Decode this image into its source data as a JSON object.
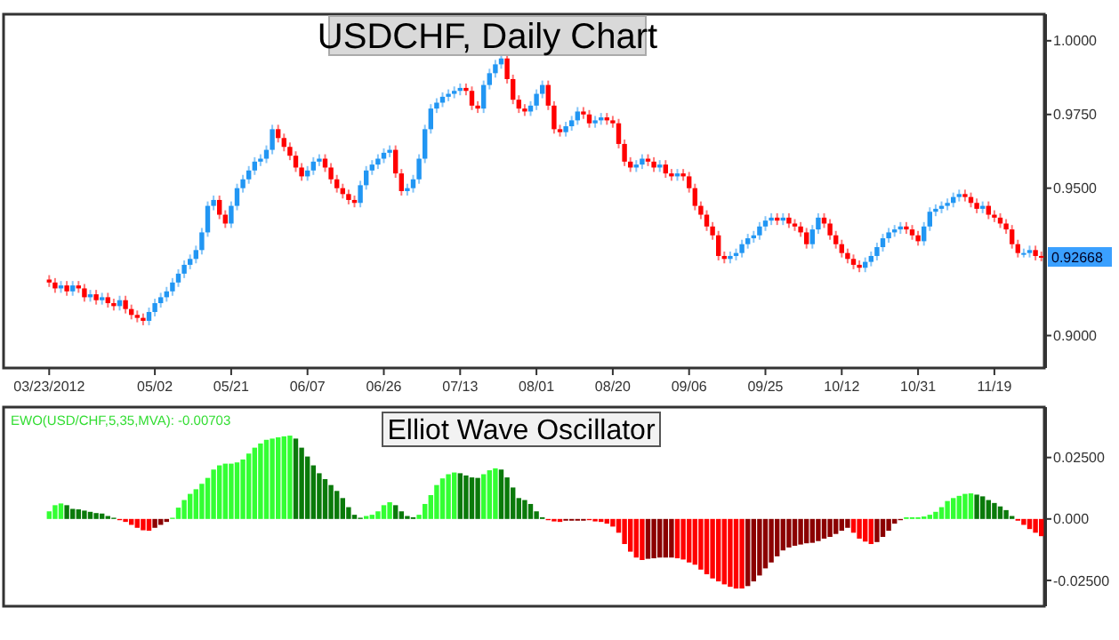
{
  "chart_data": [
    {
      "type": "candlestick",
      "title": "USDCHF, Daily Chart",
      "categories": [
        "03/23/2012",
        null,
        null,
        null,
        null,
        null,
        null,
        null,
        null,
        null,
        null,
        null,
        null,
        null,
        null,
        null,
        null,
        null,
        "05/02",
        null,
        null,
        null,
        null,
        null,
        null,
        null,
        null,
        null,
        null,
        null,
        null,
        "05/21",
        null,
        null,
        null,
        null,
        null,
        null,
        null,
        null,
        null,
        null,
        null,
        null,
        "06/07",
        null,
        null,
        null,
        null,
        null,
        null,
        null,
        null,
        null,
        null,
        null,
        null,
        "06/26",
        null,
        null,
        null,
        null,
        null,
        null,
        null,
        null,
        null,
        null,
        null,
        null,
        "07/13",
        null,
        null,
        null,
        null,
        null,
        null,
        null,
        null,
        null,
        null,
        null,
        null,
        "08/01",
        null,
        null,
        null,
        null,
        null,
        null,
        null,
        null,
        null,
        null,
        null,
        null,
        "08/20",
        null,
        null,
        null,
        null,
        null,
        null,
        null,
        null,
        null,
        null,
        null,
        null,
        "09/06",
        null,
        null,
        null,
        null,
        null,
        null,
        null,
        null,
        null,
        null,
        null,
        null,
        "09/25",
        null,
        null,
        null,
        null,
        null,
        null,
        null,
        null,
        null,
        null,
        null,
        null,
        "10/12",
        null,
        null,
        null,
        null,
        null,
        null,
        null,
        null,
        null,
        null,
        null,
        null,
        "10/31",
        null,
        null,
        null,
        null,
        null,
        null,
        null,
        null,
        null,
        null,
        null,
        null,
        "11/19",
        null,
        null,
        null,
        null,
        null,
        null,
        null,
        null
      ],
      "ohlc": [
        [
          0.919,
          0.9205,
          0.9165,
          0.918
        ],
        [
          0.918,
          0.9195,
          0.9145,
          0.916
        ],
        [
          0.916,
          0.9185,
          0.9145,
          0.917
        ],
        [
          0.917,
          0.9185,
          0.9135,
          0.915
        ],
        [
          0.915,
          0.9185,
          0.9135,
          0.917
        ],
        [
          0.917,
          0.9185,
          0.9145,
          0.916
        ],
        [
          0.916,
          0.9175,
          0.9115,
          0.913
        ],
        [
          0.913,
          0.9155,
          0.9115,
          0.914
        ],
        [
          0.914,
          0.9155,
          0.9105,
          0.912
        ],
        [
          0.912,
          0.9145,
          0.9105,
          0.913
        ],
        [
          0.913,
          0.9145,
          0.9095,
          0.911
        ],
        [
          0.911,
          0.9125,
          0.9085,
          0.91
        ],
        [
          0.91,
          0.9135,
          0.9085,
          0.912
        ],
        [
          0.912,
          0.9135,
          0.9075,
          0.909
        ],
        [
          0.909,
          0.9105,
          0.9055,
          0.907
        ],
        [
          0.907,
          0.9085,
          0.9045,
          0.906
        ],
        [
          0.906,
          0.9075,
          0.9035,
          0.905
        ],
        [
          0.905,
          0.9095,
          0.9035,
          0.908
        ],
        [
          0.908,
          0.9125,
          0.9065,
          0.911
        ],
        [
          0.911,
          0.9145,
          0.9095,
          0.913
        ],
        [
          0.913,
          0.9165,
          0.9115,
          0.915
        ],
        [
          0.915,
          0.9195,
          0.9135,
          0.918
        ],
        [
          0.918,
          0.9225,
          0.9165,
          0.921
        ],
        [
          0.921,
          0.9255,
          0.9195,
          0.924
        ],
        [
          0.924,
          0.9275,
          0.9225,
          0.926
        ],
        [
          0.926,
          0.9305,
          0.9245,
          0.929
        ],
        [
          0.929,
          0.9365,
          0.9275,
          0.935
        ],
        [
          0.935,
          0.9455,
          0.9335,
          0.944
        ],
        [
          0.944,
          0.9475,
          0.9425,
          0.946
        ],
        [
          0.946,
          0.9475,
          0.9395,
          0.941
        ],
        [
          0.941,
          0.9425,
          0.9365,
          0.938
        ],
        [
          0.938,
          0.9455,
          0.9365,
          0.944
        ],
        [
          0.944,
          0.9515,
          0.9425,
          0.95
        ],
        [
          0.95,
          0.9545,
          0.9485,
          0.953
        ],
        [
          0.953,
          0.9575,
          0.9515,
          0.956
        ],
        [
          0.956,
          0.9605,
          0.9545,
          0.959
        ],
        [
          0.959,
          0.9615,
          0.9575,
          0.96
        ],
        [
          0.96,
          0.9645,
          0.9585,
          0.963
        ],
        [
          0.963,
          0.9715,
          0.9615,
          0.97
        ],
        [
          0.97,
          0.9715,
          0.9655,
          0.967
        ],
        [
          0.967,
          0.9685,
          0.9625,
          0.964
        ],
        [
          0.964,
          0.9655,
          0.9595,
          0.961
        ],
        [
          0.961,
          0.9625,
          0.9555,
          0.957
        ],
        [
          0.957,
          0.9585,
          0.9525,
          0.954
        ],
        [
          0.954,
          0.9575,
          0.9525,
          0.956
        ],
        [
          0.956,
          0.9605,
          0.9545,
          0.959
        ],
        [
          0.959,
          0.9615,
          0.9575,
          0.96
        ],
        [
          0.96,
          0.9615,
          0.9555,
          0.957
        ],
        [
          0.957,
          0.9585,
          0.9515,
          0.953
        ],
        [
          0.953,
          0.9545,
          0.9485,
          0.95
        ],
        [
          0.95,
          0.9515,
          0.9465,
          0.948
        ],
        [
          0.948,
          0.9495,
          0.9445,
          0.946
        ],
        [
          0.946,
          0.9475,
          0.9435,
          0.945
        ],
        [
          0.945,
          0.9525,
          0.9435,
          0.951
        ],
        [
          0.951,
          0.9575,
          0.9495,
          0.956
        ],
        [
          0.956,
          0.9595,
          0.9545,
          0.958
        ],
        [
          0.958,
          0.9615,
          0.9565,
          0.96
        ],
        [
          0.96,
          0.9635,
          0.9585,
          0.962
        ],
        [
          0.962,
          0.9645,
          0.9605,
          0.963
        ],
        [
          0.963,
          0.9645,
          0.9535,
          0.955
        ],
        [
          0.955,
          0.9565,
          0.9475,
          0.949
        ],
        [
          0.949,
          0.9515,
          0.9475,
          0.95
        ],
        [
          0.95,
          0.9545,
          0.9485,
          0.953
        ],
        [
          0.953,
          0.9615,
          0.9515,
          0.96
        ],
        [
          0.96,
          0.9715,
          0.9585,
          0.97
        ],
        [
          0.97,
          0.9785,
          0.9685,
          0.977
        ],
        [
          0.977,
          0.9805,
          0.9755,
          0.979
        ],
        [
          0.979,
          0.9825,
          0.9775,
          0.981
        ],
        [
          0.981,
          0.9835,
          0.9795,
          0.982
        ],
        [
          0.982,
          0.9845,
          0.9805,
          0.983
        ],
        [
          0.983,
          0.9855,
          0.9815,
          0.984
        ],
        [
          0.984,
          0.9855,
          0.9815,
          0.983
        ],
        [
          0.983,
          0.9845,
          0.9765,
          0.978
        ],
        [
          0.978,
          0.9795,
          0.9755,
          0.977
        ],
        [
          0.977,
          0.9865,
          0.9755,
          0.985
        ],
        [
          0.985,
          0.9905,
          0.9835,
          0.989
        ],
        [
          0.989,
          0.9935,
          0.9875,
          0.992
        ],
        [
          0.992,
          0.9955,
          0.9905,
          0.994
        ],
        [
          0.994,
          0.9955,
          0.9855,
          0.987
        ],
        [
          0.987,
          0.9885,
          0.9785,
          0.98
        ],
        [
          0.98,
          0.9815,
          0.9755,
          0.977
        ],
        [
          0.977,
          0.9785,
          0.9745,
          0.976
        ],
        [
          0.976,
          0.9795,
          0.9745,
          0.978
        ],
        [
          0.978,
          0.9835,
          0.9765,
          0.982
        ],
        [
          0.982,
          0.9865,
          0.9805,
          0.985
        ],
        [
          0.985,
          0.9865,
          0.9765,
          0.978
        ],
        [
          0.978,
          0.9795,
          0.9685,
          0.97
        ],
        [
          0.97,
          0.9715,
          0.9675,
          0.969
        ],
        [
          0.969,
          0.9725,
          0.9675,
          0.971
        ],
        [
          0.971,
          0.9745,
          0.9695,
          0.973
        ],
        [
          0.973,
          0.9775,
          0.9715,
          0.976
        ],
        [
          0.976,
          0.9775,
          0.9735,
          0.975
        ],
        [
          0.975,
          0.9765,
          0.9705,
          0.972
        ],
        [
          0.972,
          0.9745,
          0.9705,
          0.973
        ],
        [
          0.973,
          0.9755,
          0.9715,
          0.974
        ],
        [
          0.974,
          0.9755,
          0.9715,
          0.973
        ],
        [
          0.973,
          0.9745,
          0.9705,
          0.972
        ],
        [
          0.972,
          0.9735,
          0.9635,
          0.965
        ],
        [
          0.965,
          0.9665,
          0.9575,
          0.959
        ],
        [
          0.959,
          0.9605,
          0.9555,
          0.957
        ],
        [
          0.957,
          0.9595,
          0.9555,
          0.958
        ],
        [
          0.958,
          0.9615,
          0.9565,
          0.96
        ],
        [
          0.96,
          0.9615,
          0.9575,
          0.959
        ],
        [
          0.959,
          0.9605,
          0.9555,
          0.957
        ],
        [
          0.957,
          0.9595,
          0.9555,
          0.958
        ],
        [
          0.958,
          0.9595,
          0.9535,
          0.955
        ],
        [
          0.955,
          0.9565,
          0.9525,
          0.954
        ],
        [
          0.954,
          0.9565,
          0.9525,
          0.955
        ],
        [
          0.955,
          0.9565,
          0.9525,
          0.954
        ],
        [
          0.954,
          0.9555,
          0.9485,
          0.95
        ],
        [
          0.95,
          0.9515,
          0.9425,
          0.944
        ],
        [
          0.944,
          0.9455,
          0.9395,
          0.941
        ],
        [
          0.941,
          0.9425,
          0.9355,
          0.937
        ],
        [
          0.937,
          0.9385,
          0.9325,
          0.934
        ],
        [
          0.934,
          0.9355,
          0.9255,
          0.927
        ],
        [
          0.927,
          0.9285,
          0.9245,
          0.926
        ],
        [
          0.926,
          0.9285,
          0.9245,
          0.927
        ],
        [
          0.927,
          0.9295,
          0.9255,
          0.928
        ],
        [
          0.928,
          0.9325,
          0.9265,
          0.931
        ],
        [
          0.931,
          0.9345,
          0.9295,
          0.933
        ],
        [
          0.933,
          0.9355,
          0.9315,
          0.934
        ],
        [
          0.934,
          0.9385,
          0.9325,
          0.937
        ],
        [
          0.937,
          0.9405,
          0.9355,
          0.939
        ],
        [
          0.939,
          0.9415,
          0.9375,
          0.94
        ],
        [
          0.94,
          0.9415,
          0.9375,
          0.939
        ],
        [
          0.939,
          0.9415,
          0.9375,
          0.94
        ],
        [
          0.94,
          0.9415,
          0.9365,
          0.938
        ],
        [
          0.938,
          0.9395,
          0.9355,
          0.937
        ],
        [
          0.937,
          0.9385,
          0.9335,
          0.935
        ],
        [
          0.935,
          0.9365,
          0.9295,
          0.931
        ],
        [
          0.931,
          0.9375,
          0.9295,
          0.936
        ],
        [
          0.936,
          0.9415,
          0.9345,
          0.94
        ],
        [
          0.94,
          0.9415,
          0.9365,
          0.938
        ],
        [
          0.938,
          0.9395,
          0.9325,
          0.934
        ],
        [
          0.934,
          0.9355,
          0.9295,
          0.931
        ],
        [
          0.931,
          0.9325,
          0.9265,
          0.928
        ],
        [
          0.928,
          0.9295,
          0.9245,
          0.926
        ],
        [
          0.926,
          0.9275,
          0.9225,
          0.924
        ],
        [
          0.924,
          0.9255,
          0.9215,
          0.923
        ],
        [
          0.923,
          0.9265,
          0.9215,
          0.925
        ],
        [
          0.925,
          0.9285,
          0.9235,
          0.927
        ],
        [
          0.927,
          0.9315,
          0.9255,
          0.93
        ],
        [
          0.93,
          0.9345,
          0.9285,
          0.933
        ],
        [
          0.933,
          0.9365,
          0.9315,
          0.935
        ],
        [
          0.935,
          0.9375,
          0.9335,
          0.936
        ],
        [
          0.936,
          0.9385,
          0.9345,
          0.937
        ],
        [
          0.937,
          0.9385,
          0.9345,
          0.936
        ],
        [
          0.936,
          0.9375,
          0.9325,
          0.934
        ],
        [
          0.934,
          0.9355,
          0.9305,
          0.932
        ],
        [
          0.932,
          0.9385,
          0.9305,
          0.937
        ],
        [
          0.937,
          0.9435,
          0.9355,
          0.942
        ],
        [
          0.942,
          0.9445,
          0.9405,
          0.943
        ],
        [
          0.943,
          0.9455,
          0.9415,
          0.944
        ],
        [
          0.944,
          0.9465,
          0.9425,
          0.945
        ],
        [
          0.945,
          0.9485,
          0.9435,
          0.947
        ],
        [
          0.947,
          0.9495,
          0.9455,
          0.948
        ],
        [
          0.948,
          0.9495,
          0.9455,
          0.947
        ],
        [
          0.947,
          0.9485,
          0.9435,
          0.945
        ],
        [
          0.945,
          0.9465,
          0.9415,
          0.943
        ],
        [
          0.943,
          0.9455,
          0.9415,
          0.944
        ],
        [
          0.944,
          0.9455,
          0.9395,
          0.941
        ],
        [
          0.941,
          0.9425,
          0.9385,
          0.94
        ],
        [
          0.94,
          0.9415,
          0.9365,
          0.938
        ],
        [
          0.938,
          0.9395,
          0.9345,
          0.936
        ],
        [
          0.936,
          0.9375,
          0.9295,
          0.931
        ],
        [
          0.931,
          0.9325,
          0.9265,
          0.928
        ],
        [
          0.928,
          0.9295,
          0.9265,
          0.928
        ],
        [
          0.928,
          0.9305,
          0.9265,
          0.929
        ],
        [
          0.929,
          0.9305,
          0.9255,
          0.927
        ],
        [
          0.927,
          0.9285,
          0.9252,
          0.9267
        ]
      ],
      "colors": [
        "#ff0000",
        "#ff0000",
        "#2196f3",
        "#ff0000",
        "#2196f3",
        "#ff0000",
        "#ff0000",
        "#2196f3",
        "#ff0000",
        "#2196f3",
        "#ff0000",
        "#ff0000",
        "#2196f3",
        "#ff0000",
        "#ff0000",
        "#ff0000",
        "#ff0000",
        "#2196f3",
        "#2196f3",
        "#2196f3",
        "#2196f3",
        "#2196f3",
        "#2196f3",
        "#2196f3",
        "#2196f3",
        "#2196f3",
        "#2196f3",
        "#2196f3",
        "#2196f3",
        "#ff0000",
        "#ff0000",
        "#2196f3",
        "#2196f3",
        "#2196f3",
        "#2196f3",
        "#2196f3",
        "#2196f3",
        "#2196f3",
        "#2196f3",
        "#ff0000",
        "#ff0000",
        "#ff0000",
        "#ff0000",
        "#ff0000",
        "#2196f3",
        "#2196f3",
        "#2196f3",
        "#ff0000",
        "#ff0000",
        "#ff0000",
        "#ff0000",
        "#ff0000",
        "#ff0000",
        "#2196f3",
        "#2196f3",
        "#2196f3",
        "#2196f3",
        "#2196f3",
        "#2196f3",
        "#ff0000",
        "#ff0000",
        "#2196f3",
        "#2196f3",
        "#2196f3",
        "#2196f3",
        "#2196f3",
        "#2196f3",
        "#2196f3",
        "#2196f3",
        "#2196f3",
        "#2196f3",
        "#ff0000",
        "#ff0000",
        "#ff0000",
        "#2196f3",
        "#2196f3",
        "#2196f3",
        "#2196f3",
        "#ff0000",
        "#ff0000",
        "#ff0000",
        "#ff0000",
        "#2196f3",
        "#2196f3",
        "#2196f3",
        "#ff0000",
        "#ff0000",
        "#ff0000",
        "#2196f3",
        "#2196f3",
        "#2196f3",
        "#ff0000",
        "#ff0000",
        "#2196f3",
        "#2196f3",
        "#ff0000",
        "#ff0000",
        "#ff0000",
        "#ff0000",
        "#ff0000",
        "#2196f3",
        "#2196f3",
        "#ff0000",
        "#ff0000",
        "#2196f3",
        "#ff0000",
        "#ff0000",
        "#2196f3",
        "#ff0000",
        "#ff0000",
        "#ff0000",
        "#ff0000",
        "#ff0000",
        "#ff0000",
        "#ff0000",
        "#ff0000",
        "#2196f3",
        "#2196f3",
        "#2196f3",
        "#2196f3",
        "#2196f3",
        "#2196f3",
        "#2196f3",
        "#2196f3",
        "#ff0000",
        "#2196f3",
        "#ff0000",
        "#ff0000",
        "#ff0000",
        "#ff0000",
        "#2196f3",
        "#2196f3",
        "#ff0000",
        "#ff0000",
        "#ff0000",
        "#ff0000",
        "#ff0000",
        "#ff0000",
        "#ff0000",
        "#2196f3",
        "#2196f3",
        "#2196f3",
        "#2196f3",
        "#2196f3",
        "#2196f3",
        "#2196f3",
        "#ff0000",
        "#ff0000",
        "#ff0000",
        "#2196f3",
        "#2196f3",
        "#2196f3",
        "#2196f3",
        "#2196f3",
        "#2196f3",
        "#2196f3",
        "#ff0000",
        "#ff0000",
        "#ff0000",
        "#2196f3",
        "#ff0000",
        "#ff0000",
        "#ff0000",
        "#ff0000",
        "#ff0000",
        "#ff0000",
        "#2196f3",
        "#2196f3",
        "#ff0000",
        "#ff0000"
      ],
      "ylim": [
        0.889,
        1.009
      ],
      "yticks": [
        {
          "value": 0.9,
          "label": "0.9000"
        },
        {
          "value": 0.95,
          "label": "0.9500"
        },
        {
          "value": 0.975,
          "label": "0.9750"
        },
        {
          "value": 1.0,
          "label": "1.0000"
        }
      ],
      "annotations": [
        {
          "text": "0.92668",
          "y": 0.92668
        }
      ],
      "grid": false
    },
    {
      "type": "bar",
      "title": "Elliot Wave Oscillator",
      "categories": [
        null,
        null,
        null,
        null,
        null,
        null,
        null,
        null,
        null,
        null,
        null,
        null,
        null,
        null,
        null,
        null,
        null,
        null,
        null,
        null,
        null,
        null,
        null,
        null,
        null,
        null,
        null,
        null,
        null,
        null,
        null,
        null,
        null,
        null,
        null,
        null,
        null,
        null,
        null,
        null,
        null,
        null,
        null,
        null,
        null,
        null,
        null,
        null,
        null,
        null,
        null,
        null,
        null,
        null,
        null,
        null,
        null,
        null,
        null,
        null,
        null,
        null,
        null,
        null,
        null,
        null,
        null,
        null,
        null,
        null,
        null,
        null,
        null,
        null,
        null,
        null,
        null,
        null,
        null,
        null,
        null,
        null,
        null,
        null,
        null,
        null,
        null,
        null,
        null,
        null,
        null,
        null,
        null,
        null,
        null,
        null,
        null,
        null,
        null,
        null,
        null,
        null,
        null,
        null,
        null,
        null,
        null,
        null,
        null,
        null,
        null,
        null,
        null,
        null,
        null,
        null,
        null,
        null,
        null,
        null,
        null,
        null,
        null,
        null,
        null,
        null,
        null,
        null,
        null,
        null,
        null,
        null,
        null,
        null,
        null,
        null,
        null,
        null,
        null,
        null,
        null,
        null,
        null,
        null,
        null,
        null,
        null,
        null,
        null,
        null,
        null,
        null,
        null,
        null,
        null,
        null,
        null,
        null,
        null,
        null,
        null,
        null,
        null,
        null,
        null,
        null,
        null,
        null,
        null,
        null
      ],
      "values": [
        0.0031,
        0.0056,
        0.0063,
        0.0056,
        0.0041,
        0.0039,
        0.0034,
        0.0029,
        0.0024,
        0.0022,
        0.0012,
        0.0005,
        -0.0005,
        -0.0012,
        -0.0024,
        -0.0036,
        -0.0046,
        -0.0048,
        -0.0036,
        -0.0024,
        -0.0012,
        0.0005,
        0.0046,
        0.0077,
        0.0102,
        0.0121,
        0.0143,
        0.0167,
        0.0201,
        0.0218,
        0.0225,
        0.0225,
        0.023,
        0.0242,
        0.0266,
        0.029,
        0.0307,
        0.0322,
        0.0327,
        0.0332,
        0.0336,
        0.0339,
        0.0327,
        0.029,
        0.0254,
        0.0218,
        0.0186,
        0.0162,
        0.0138,
        0.0114,
        0.0085,
        0.0048,
        0.0017,
        0.0005,
        0.0012,
        0.0017,
        0.0031,
        0.0056,
        0.0068,
        0.0056,
        0.0031,
        0.0012,
        0.0007,
        0.0017,
        0.0061,
        0.0097,
        0.0138,
        0.0165,
        0.0182,
        0.0189,
        0.0186,
        0.0177,
        0.0169,
        0.0167,
        0.0182,
        0.0198,
        0.0206,
        0.0201,
        0.0169,
        0.0128,
        0.0085,
        0.0077,
        0.0061,
        0.0031,
        0.0007,
        -0.0005,
        -0.001,
        -0.0012,
        -0.0007,
        -0.0007,
        -0.0007,
        -0.0007,
        -0.0005,
        -0.001,
        -0.0012,
        -0.0019,
        -0.0031,
        -0.0056,
        -0.0102,
        -0.0133,
        -0.0157,
        -0.0167,
        -0.0162,
        -0.016,
        -0.0157,
        -0.0157,
        -0.0157,
        -0.016,
        -0.0165,
        -0.0177,
        -0.0186,
        -0.0206,
        -0.0225,
        -0.0242,
        -0.0254,
        -0.0266,
        -0.0276,
        -0.0283,
        -0.0283,
        -0.0273,
        -0.0254,
        -0.023,
        -0.0201,
        -0.0177,
        -0.0152,
        -0.0128,
        -0.0116,
        -0.0109,
        -0.0104,
        -0.0099,
        -0.0097,
        -0.009,
        -0.008,
        -0.0073,
        -0.0061,
        -0.0048,
        -0.0036,
        -0.0056,
        -0.008,
        -0.0092,
        -0.0102,
        -0.0094,
        -0.0073,
        -0.0048,
        -0.0019,
        -0.0005,
        0.0007,
        0.0007,
        0.0007,
        0.001,
        0.0017,
        0.0029,
        0.0048,
        0.0073,
        0.0085,
        0.0094,
        0.0102,
        0.0104,
        0.0099,
        0.0092,
        0.0077,
        0.0065,
        0.0051,
        0.0036,
        0.0012,
        -0.0007,
        -0.0024,
        -0.0041,
        -0.0056,
        -0.007
      ],
      "colors": [
        "#33ff33",
        "#33ff33",
        "#33ff33",
        "#0a7a0a",
        "#0a7a0a",
        "#0a7a0a",
        "#0a7a0a",
        "#0a7a0a",
        "#0a7a0a",
        "#0a7a0a",
        "#0a7a0a",
        "#0a7a0a",
        "#ff0000",
        "#ff0000",
        "#ff0000",
        "#ff0000",
        "#ff0000",
        "#ff0000",
        "#8b0000",
        "#8b0000",
        "#8b0000",
        "#33ff33",
        "#33ff33",
        "#33ff33",
        "#33ff33",
        "#33ff33",
        "#33ff33",
        "#33ff33",
        "#33ff33",
        "#33ff33",
        "#33ff33",
        "#33ff33",
        "#33ff33",
        "#33ff33",
        "#33ff33",
        "#33ff33",
        "#33ff33",
        "#33ff33",
        "#33ff33",
        "#33ff33",
        "#33ff33",
        "#33ff33",
        "#0a7a0a",
        "#0a7a0a",
        "#0a7a0a",
        "#0a7a0a",
        "#0a7a0a",
        "#0a7a0a",
        "#0a7a0a",
        "#0a7a0a",
        "#0a7a0a",
        "#0a7a0a",
        "#0a7a0a",
        "#0a7a0a",
        "#33ff33",
        "#33ff33",
        "#33ff33",
        "#33ff33",
        "#33ff33",
        "#0a7a0a",
        "#0a7a0a",
        "#0a7a0a",
        "#0a7a0a",
        "#33ff33",
        "#33ff33",
        "#33ff33",
        "#33ff33",
        "#33ff33",
        "#33ff33",
        "#33ff33",
        "#0a7a0a",
        "#0a7a0a",
        "#0a7a0a",
        "#0a7a0a",
        "#33ff33",
        "#33ff33",
        "#33ff33",
        "#0a7a0a",
        "#0a7a0a",
        "#0a7a0a",
        "#0a7a0a",
        "#0a7a0a",
        "#0a7a0a",
        "#0a7a0a",
        "#0a7a0a",
        "#ff0000",
        "#ff0000",
        "#ff0000",
        "#8b0000",
        "#8b0000",
        "#8b0000",
        "#8b0000",
        "#ff0000",
        "#ff0000",
        "#ff0000",
        "#ff0000",
        "#ff0000",
        "#ff0000",
        "#ff0000",
        "#ff0000",
        "#ff0000",
        "#ff0000",
        "#8b0000",
        "#8b0000",
        "#8b0000",
        "#8b0000",
        "#8b0000",
        "#ff0000",
        "#ff0000",
        "#ff0000",
        "#ff0000",
        "#ff0000",
        "#ff0000",
        "#ff0000",
        "#ff0000",
        "#ff0000",
        "#ff0000",
        "#ff0000",
        "#ff0000",
        "#8b0000",
        "#8b0000",
        "#8b0000",
        "#8b0000",
        "#8b0000",
        "#8b0000",
        "#8b0000",
        "#8b0000",
        "#8b0000",
        "#8b0000",
        "#8b0000",
        "#8b0000",
        "#8b0000",
        "#8b0000",
        "#8b0000",
        "#8b0000",
        "#8b0000",
        "#8b0000",
        "#ff0000",
        "#ff0000",
        "#ff0000",
        "#ff0000",
        "#8b0000",
        "#8b0000",
        "#8b0000",
        "#8b0000",
        "#8b0000",
        "#33ff33",
        "#33ff33",
        "#33ff33",
        "#33ff33",
        "#33ff33",
        "#33ff33",
        "#33ff33",
        "#33ff33",
        "#33ff33",
        "#33ff33",
        "#33ff33",
        "#33ff33",
        "#0a7a0a",
        "#0a7a0a",
        "#0a7a0a",
        "#0a7a0a",
        "#0a7a0a",
        "#0a7a0a",
        "#0a7a0a",
        "#ff0000",
        "#ff0000",
        "#ff0000",
        "#ff0000",
        "#ff0000"
      ],
      "ylim": [
        -0.0355,
        0.0455
      ],
      "yticks": [
        {
          "value": -0.025,
          "label": "-0.02500"
        },
        {
          "value": 0,
          "label": "0.000"
        },
        {
          "value": 0.025,
          "label": "0.02500"
        }
      ],
      "annotations": [
        "EWO(USD/CHF,5,35,MVA): -0.00703"
      ],
      "tick_labels": "y",
      "grid": false
    }
  ]
}
